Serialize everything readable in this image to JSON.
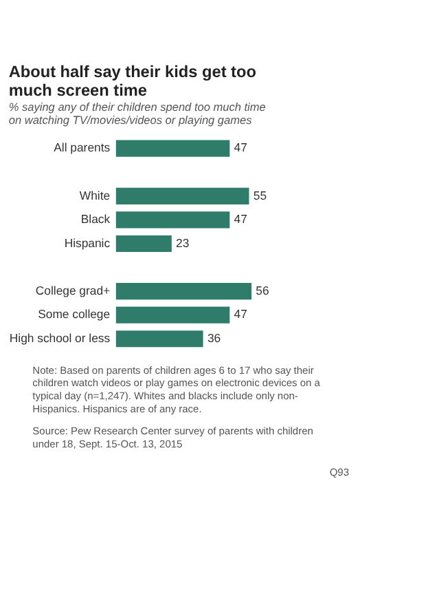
{
  "chart_data": {
    "type": "bar",
    "orientation": "horizontal",
    "title": "About half say their kids get too much screen time",
    "subtitle": "% saying any of their children spend too much time on watching TV/movies/videos or playing games",
    "categories": [
      "All parents",
      null,
      "White",
      "Black",
      "Hispanic",
      null,
      "College grad+",
      "Some college",
      "High school or less"
    ],
    "values": [
      47,
      null,
      55,
      47,
      23,
      null,
      56,
      47,
      36
    ],
    "color": "#2e7c69",
    "data_labels": true,
    "grid": false,
    "annotations": [
      "Note: Based on parents of children ages 6 to 17 who say their children watch videos or play games on electronic devices on a typical day (n=1,247). Whites and blacks include only non-Hispanics. Hispanics are of any race.",
      "Source: Pew Research Center survey of parents with children under 18, Sept. 15-Oct. 13, 2015",
      "Q93"
    ]
  }
}
